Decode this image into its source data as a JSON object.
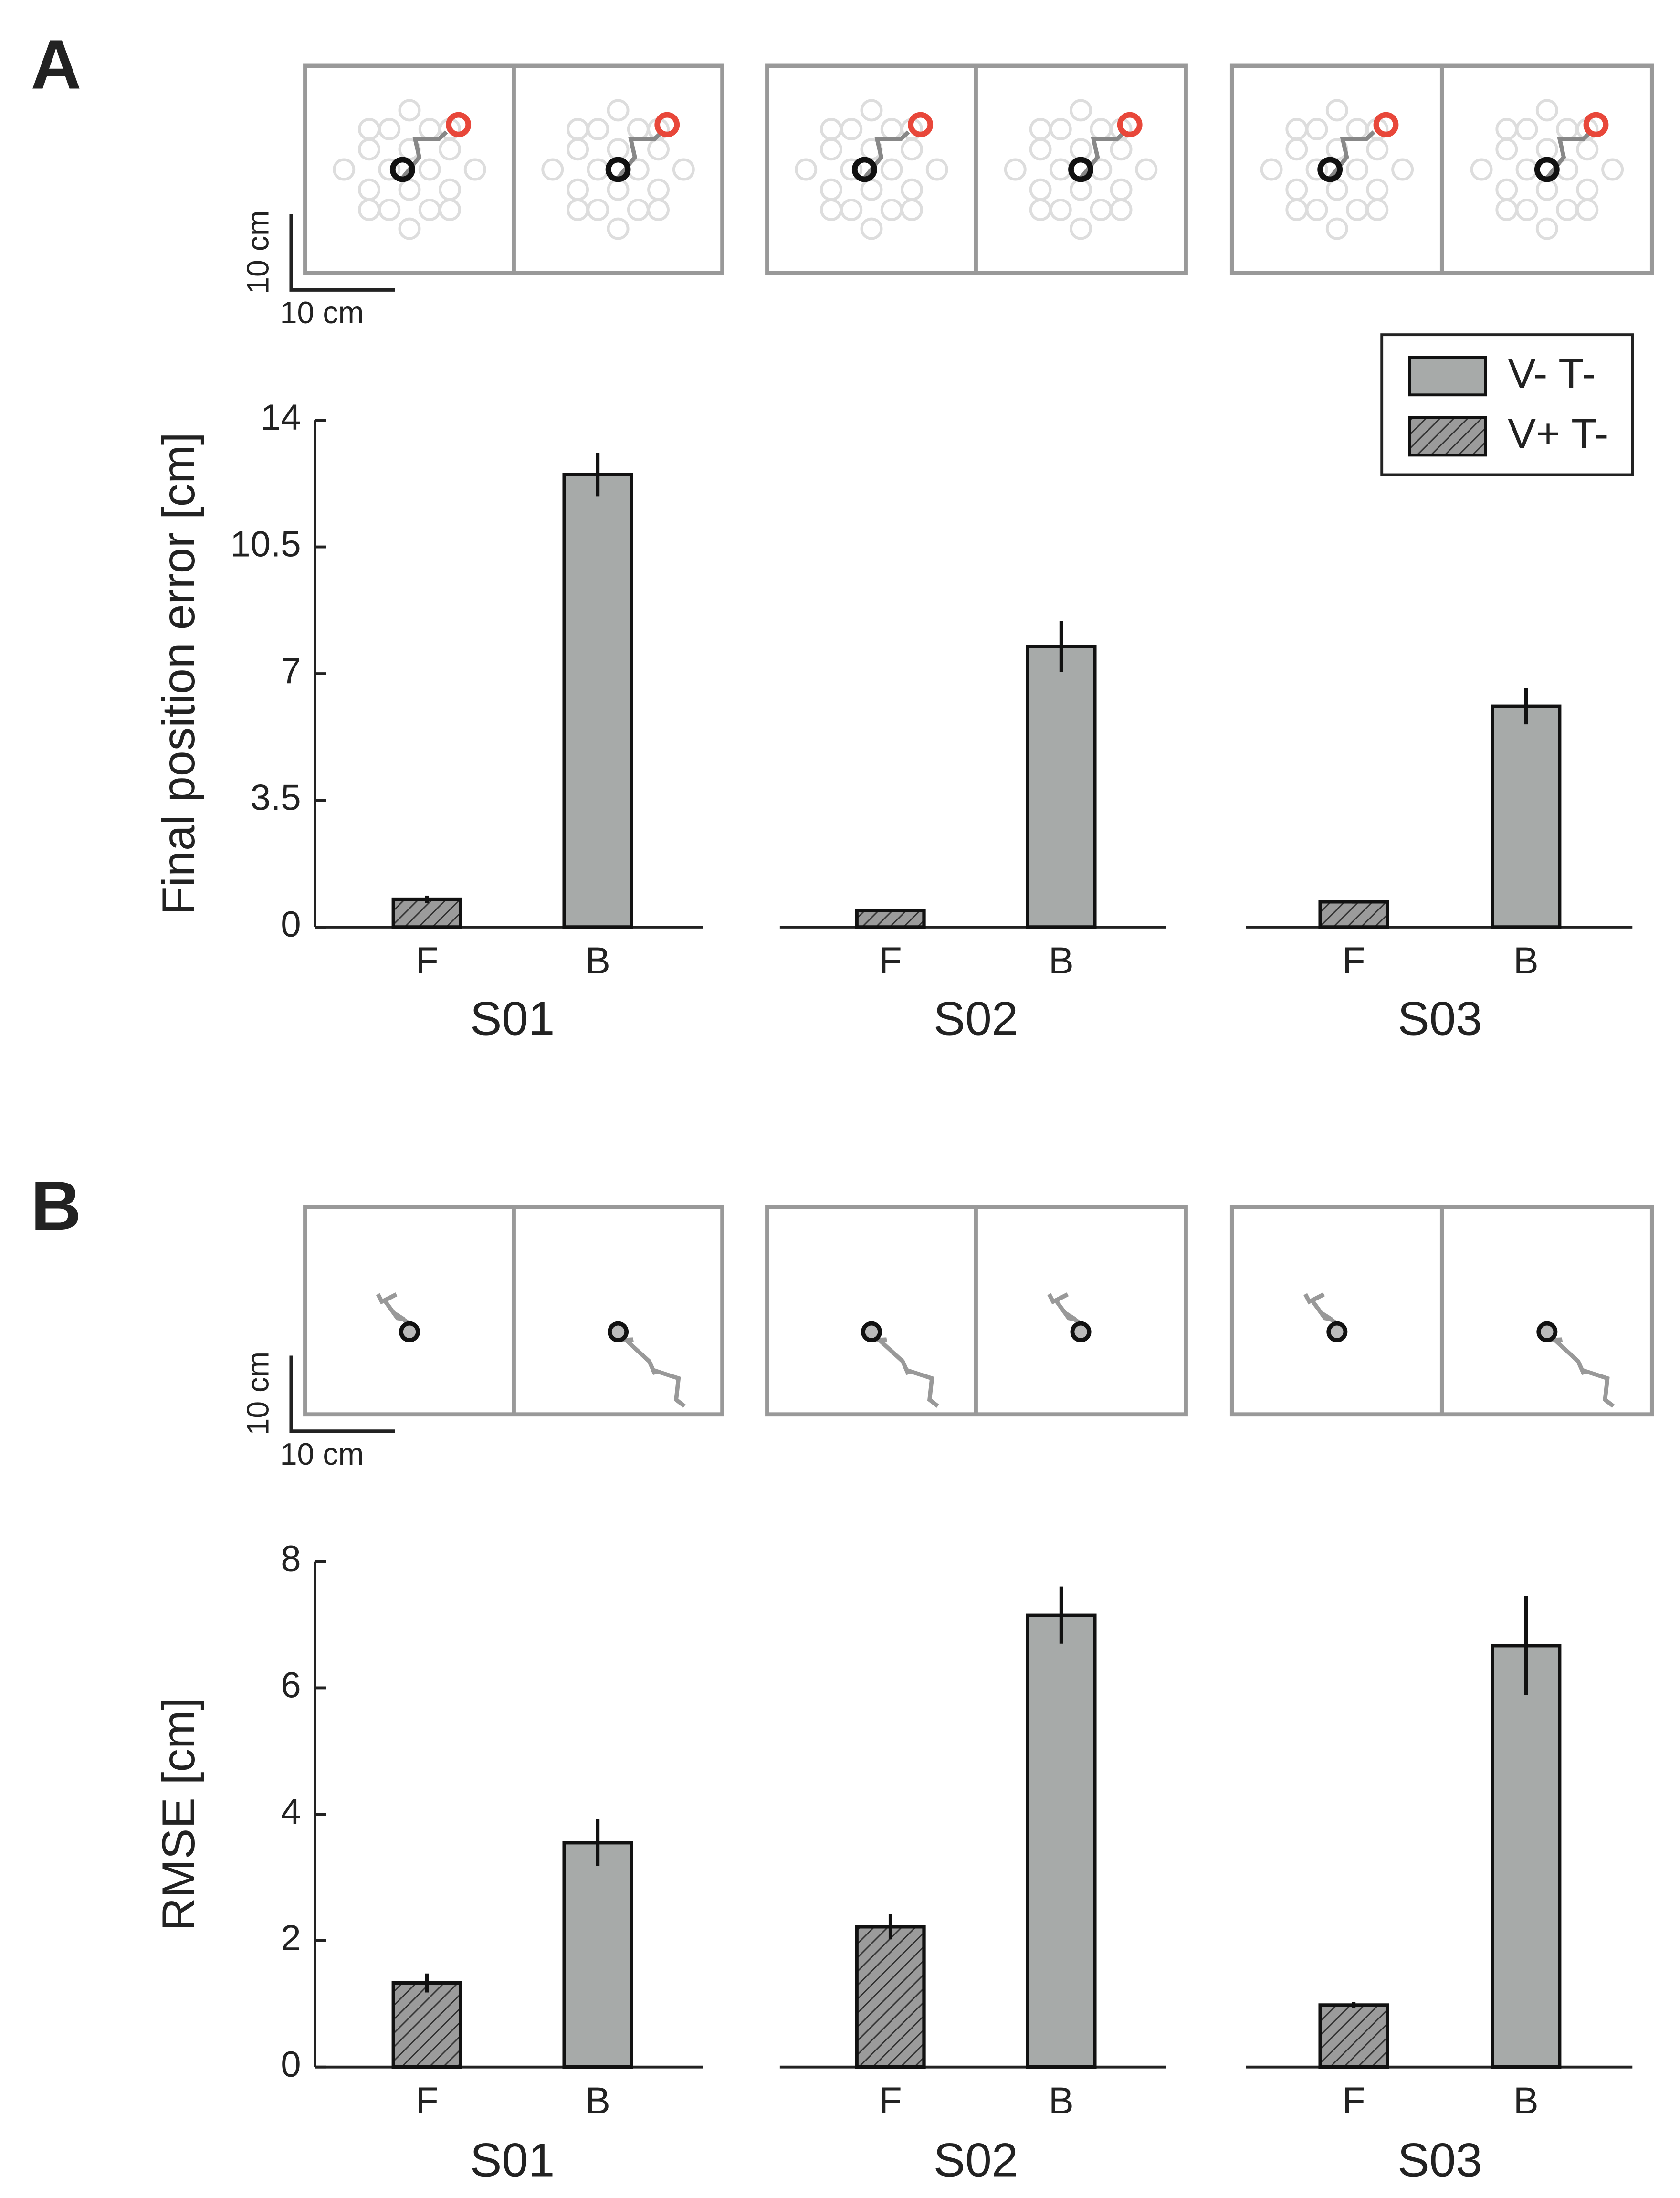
{
  "chart_data": [
    {
      "type": "bar",
      "panel_label": "A",
      "ylabel": "Final position error [cm]",
      "ylim": [
        0,
        14
      ],
      "yticks": [
        0,
        3.5,
        7,
        10.5,
        14
      ],
      "scale_bar": {
        "x_label": "10 cm",
        "y_label": "10 cm"
      },
      "groups": [
        "S01",
        "S02",
        "S03"
      ],
      "legend": "upper right",
      "series": [
        {
          "name": "V+ T-",
          "label": "F",
          "color": "#9b9b9b",
          "pattern": "hatch",
          "values": [
            0.77,
            0.46,
            0.7
          ],
          "errors": [
            0.1,
            0.05,
            0.05
          ]
        },
        {
          "name": "V- T-",
          "label": "B",
          "color": "#a7aaa9",
          "pattern": "solid",
          "values": [
            12.5,
            7.75,
            6.1
          ],
          "errors": [
            0.6,
            0.7,
            0.5
          ]
        }
      ]
    },
    {
      "type": "bar",
      "panel_label": "B",
      "ylabel": "RMSE [cm]",
      "ylim": [
        0,
        8
      ],
      "yticks": [
        0,
        2,
        4,
        6,
        8
      ],
      "scale_bar": {
        "x_label": "10 cm",
        "y_label": "10 cm"
      },
      "groups": [
        "S01",
        "S02",
        "S03"
      ],
      "series": [
        {
          "label": "F",
          "color": "#9b9b9b",
          "pattern": "hatch",
          "values": [
            1.33,
            2.22,
            0.98
          ],
          "errors": [
            0.15,
            0.2,
            0.05
          ]
        },
        {
          "label": "B",
          "color": "#a7aaa9",
          "pattern": "solid",
          "values": [
            3.55,
            7.15,
            6.67
          ],
          "errors": [
            0.37,
            0.45,
            0.78
          ]
        }
      ]
    }
  ]
}
